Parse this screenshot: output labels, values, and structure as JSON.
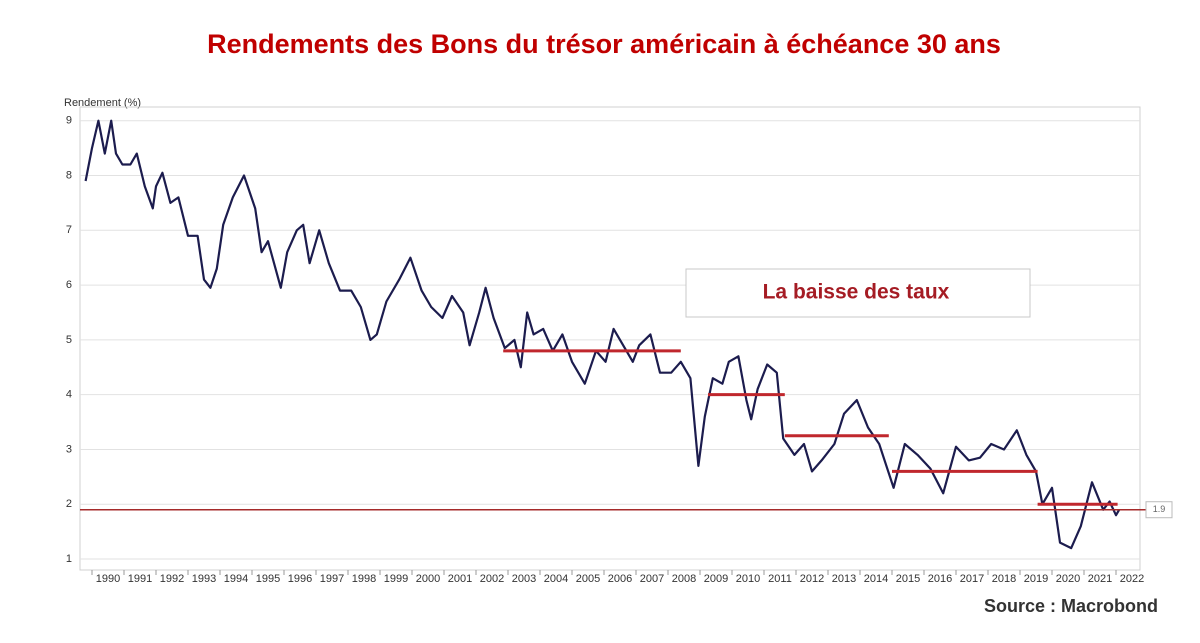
{
  "chart_data": {
    "type": "line",
    "title": "Rendements des Bons du trésor américain à échéance 30 ans",
    "y_label": "Rendement (%)",
    "annotation": "La baisse des taux",
    "source": "Source : Macrobond",
    "color": "#1c1c4e",
    "x": [
      1989.8,
      1990.0,
      1990.2,
      1990.4,
      1990.6,
      1990.75,
      1990.95,
      1991.2,
      1991.4,
      1991.65,
      1991.9,
      1992.0,
      1992.2,
      1992.45,
      1992.7,
      1993.0,
      1993.3,
      1993.5,
      1993.7,
      1993.9,
      1994.1,
      1994.4,
      1994.75,
      1995.1,
      1995.3,
      1995.5,
      1995.9,
      1996.1,
      1996.4,
      1996.6,
      1996.8,
      1997.1,
      1997.4,
      1997.75,
      1998.1,
      1998.4,
      1998.7,
      1998.9,
      1999.2,
      1999.6,
      1999.95,
      2000.3,
      2000.6,
      2000.95,
      2001.25,
      2001.6,
      2001.8,
      2002.1,
      2002.3,
      2002.55,
      2002.9,
      2003.2,
      2003.4,
      2003.6,
      2003.8,
      2004.1,
      2004.4,
      2004.7,
      2005.0,
      2005.4,
      2005.75,
      2006.05,
      2006.3,
      2006.7,
      2006.9,
      2007.1,
      2007.45,
      2007.75,
      2008.1,
      2008.4,
      2008.7,
      2008.95,
      2009.15,
      2009.4,
      2009.7,
      2009.9,
      2010.2,
      2010.45,
      2010.6,
      2010.8,
      2011.1,
      2011.4,
      2011.6,
      2011.95,
      2012.25,
      2012.5,
      2012.8,
      2013.2,
      2013.5,
      2013.9,
      2014.25,
      2014.6,
      2015.05,
      2015.4,
      2015.8,
      2016.2,
      2016.6,
      2017.0,
      2017.4,
      2017.75,
      2018.1,
      2018.5,
      2018.9,
      2019.2,
      2019.5,
      2019.7,
      2020.0,
      2020.25,
      2020.6,
      2020.9,
      2021.25,
      2021.6,
      2021.8,
      2022.0,
      2022.1
    ],
    "values": [
      7.9,
      8.5,
      9.0,
      8.4,
      9.0,
      8.4,
      8.2,
      8.2,
      8.4,
      7.8,
      7.4,
      7.8,
      8.05,
      7.5,
      7.6,
      6.9,
      6.9,
      6.1,
      5.95,
      6.3,
      7.1,
      7.6,
      8.0,
      7.4,
      6.6,
      6.8,
      5.95,
      6.6,
      7.0,
      7.1,
      6.4,
      7.0,
      6.4,
      5.9,
      5.9,
      5.6,
      5.0,
      5.1,
      5.7,
      6.1,
      6.5,
      5.9,
      5.6,
      5.4,
      5.8,
      5.5,
      4.9,
      5.5,
      5.95,
      5.4,
      4.85,
      5.0,
      4.5,
      5.5,
      5.1,
      5.2,
      4.8,
      5.1,
      4.6,
      4.2,
      4.8,
      4.6,
      5.2,
      4.8,
      4.6,
      4.9,
      5.1,
      4.4,
      4.4,
      4.6,
      4.3,
      2.7,
      3.6,
      4.3,
      4.2,
      4.6,
      4.7,
      3.9,
      3.55,
      4.1,
      4.55,
      4.4,
      3.2,
      2.9,
      3.1,
      2.6,
      2.8,
      3.1,
      3.65,
      3.9,
      3.4,
      3.1,
      2.3,
      3.1,
      2.9,
      2.65,
      2.2,
      3.05,
      2.8,
      2.85,
      3.1,
      3.0,
      3.35,
      2.9,
      2.6,
      2.0,
      2.3,
      1.3,
      1.2,
      1.6,
      2.4,
      1.9,
      2.05,
      1.8,
      1.9
    ],
    "levels": [
      {
        "value": 4.8,
        "x": [
          2002.85,
          2008.4
        ]
      },
      {
        "value": 4.0,
        "x": [
          2009.25,
          2011.65
        ]
      },
      {
        "value": 3.25,
        "x": [
          2011.65,
          2014.9
        ]
      },
      {
        "value": 2.6,
        "x": [
          2015.0,
          2019.55
        ]
      },
      {
        "value": 2.0,
        "x": [
          2019.55,
          2022.05
        ]
      }
    ],
    "level_color": "#c0272d",
    "reference": 1.9,
    "reference_color": "#a52a2a",
    "xlim": [
      1989.625,
      2022.75
    ],
    "xticks": [
      1990,
      1991,
      1992,
      1993,
      1994,
      1995,
      1996,
      1997,
      1998,
      1999,
      2000,
      2001,
      2002,
      2003,
      2004,
      2005,
      2006,
      2007,
      2008,
      2009,
      2010,
      2011,
      2012,
      2013,
      2014,
      2015,
      2016,
      2017,
      2018,
      2019,
      2020,
      2021,
      2022
    ],
    "ylim": [
      0.8,
      9.25
    ],
    "yticks": [
      1,
      2,
      3,
      4,
      5,
      6,
      7,
      8,
      9
    ],
    "grid": true
  }
}
